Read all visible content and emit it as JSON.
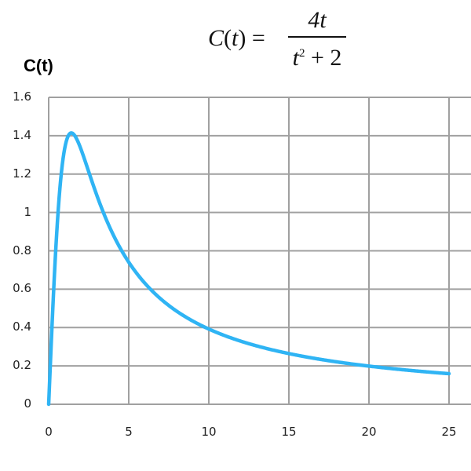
{
  "chart_data": {
    "type": "line",
    "title": "C(t) = 4t / (t^2 + 2)",
    "formula": {
      "lhs": "C(t) =",
      "numerator": "4t",
      "denominator": "t² + 2"
    },
    "xlabel": "",
    "ylabel": "C(t)",
    "xlim": [
      0,
      25
    ],
    "ylim": [
      0,
      1.6
    ],
    "grid": true,
    "legend": null,
    "x_ticks": [
      "0",
      "5",
      "10",
      "15",
      "20",
      "25"
    ],
    "y_ticks": [
      "0",
      "0.2",
      "0.4",
      "0.6",
      "0.8",
      "1",
      "1.2",
      "1.4",
      "1.6"
    ],
    "series": [
      {
        "name": "C(t)",
        "color": "#2fb4f4",
        "x": [
          0,
          0.5,
          1,
          1.414,
          2,
          3,
          4,
          5,
          6,
          8,
          10,
          12,
          15,
          20,
          25
        ],
        "values": [
          0,
          0.889,
          1.333,
          1.414,
          1.333,
          1.091,
          0.889,
          0.741,
          0.632,
          0.485,
          0.392,
          0.329,
          0.264,
          0.198,
          0.159
        ]
      }
    ]
  },
  "labels": {
    "ylabel": "C(t)",
    "y_ticks": [
      "1.6",
      "1.4",
      "1.2",
      "1",
      "0.8",
      "0.6",
      "0.4",
      "0.2",
      "0"
    ],
    "x_ticks": [
      "0",
      "5",
      "10",
      "15",
      "20",
      "25"
    ]
  },
  "colors": {
    "curve": "#2fb4f4",
    "grid": "#a0a0a0"
  }
}
